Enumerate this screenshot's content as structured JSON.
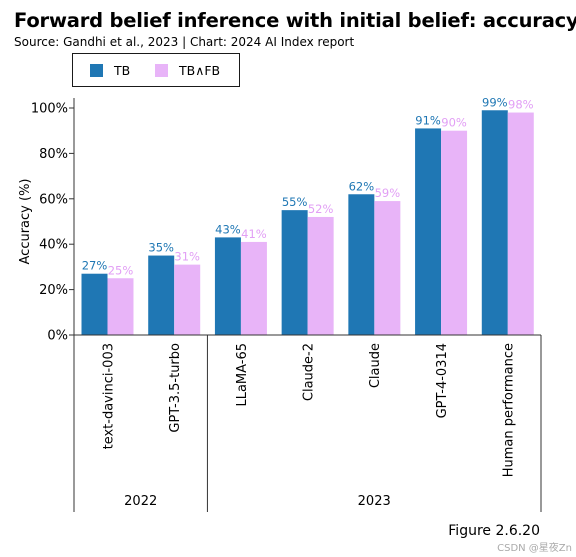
{
  "header": {
    "title": "Forward belief inference with initial belief: accuracy",
    "source": "Source: Gandhi et al., 2023 | Chart: 2024 AI Index report"
  },
  "legend": {
    "items": [
      {
        "label": "TB",
        "color": "#1f77b4"
      },
      {
        "label": "TB∧FB",
        "color": "#e8b4f8"
      }
    ]
  },
  "footer": {
    "figure_label": "Figure 2.6.20",
    "watermark": "CSDN @星夜Zn"
  },
  "chart_data": {
    "type": "bar",
    "ylabel": "Accuracy (%)",
    "ylim": [
      0,
      100
    ],
    "yticks": [
      "0%",
      "20%",
      "40%",
      "60%",
      "80%",
      "100%"
    ],
    "grid": false,
    "legend_position": "top-left",
    "categories": [
      "text-davinci-003",
      "GPT-3.5-turbo",
      "LLaMA-65",
      "Claude-2",
      "Claude",
      "GPT-4-0314",
      "Human performance"
    ],
    "groups": [
      {
        "label": "2022",
        "span": 2
      },
      {
        "label": "2023",
        "span": 5
      }
    ],
    "series": [
      {
        "name": "TB",
        "color": "#1f77b4",
        "label_color": "#1f77b4",
        "values": [
          27,
          35,
          43,
          55,
          62,
          91,
          99
        ],
        "labels": [
          "27%",
          "35%",
          "43%",
          "55%",
          "62%",
          "91%",
          "99%"
        ]
      },
      {
        "name": "TB∧FB",
        "color": "#e8b4f8",
        "label_color": "#e29ff5",
        "values": [
          25,
          31,
          41,
          52,
          59,
          90,
          98
        ],
        "labels": [
          "25%",
          "31%",
          "41%",
          "52%",
          "59%",
          "90%",
          "98%"
        ]
      }
    ]
  }
}
